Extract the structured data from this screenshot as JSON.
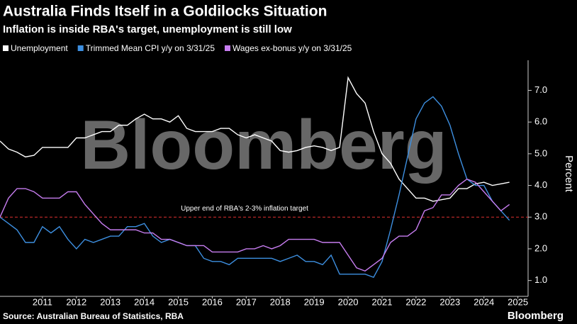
{
  "chart_data": {
    "type": "line",
    "title": "Australia Finds Itself in a Goldilocks Situation",
    "subtitle": "Inflation is inside RBA's target, unemployment is still low",
    "y_axis_label": "Percent",
    "source": "Source: Australian Bureau of Statistics, RBA",
    "watermark": "Bloomberg",
    "logo": "Bloomberg",
    "x": [
      2010.25,
      2010.5,
      2010.75,
      2011,
      2011.25,
      2011.5,
      2011.75,
      2012,
      2012.25,
      2012.5,
      2012.75,
      2013,
      2013.25,
      2013.5,
      2013.75,
      2014,
      2014.25,
      2014.5,
      2014.75,
      2015,
      2015.25,
      2015.5,
      2015.75,
      2016,
      2016.25,
      2016.5,
      2016.75,
      2017,
      2017.25,
      2017.5,
      2017.75,
      2018,
      2018.25,
      2018.5,
      2018.75,
      2019,
      2019.25,
      2019.5,
      2019.75,
      2020,
      2020.25,
      2020.5,
      2020.75,
      2021,
      2021.25,
      2021.5,
      2021.75,
      2022,
      2022.25,
      2022.5,
      2022.75,
      2023,
      2023.25,
      2023.5,
      2023.75,
      2024,
      2024.25,
      2024.5,
      2024.75,
      2025,
      2025.25
    ],
    "series": [
      {
        "name": "Unemployment",
        "color": "#ffffff",
        "values": [
          5.4,
          5.15,
          5.05,
          4.9,
          4.95,
          5.2,
          5.2,
          5.2,
          5.2,
          5.5,
          5.5,
          5.6,
          5.7,
          5.7,
          5.9,
          5.9,
          6.1,
          6.25,
          6.1,
          6.1,
          6.0,
          6.2,
          5.8,
          5.7,
          5.7,
          5.7,
          5.8,
          5.8,
          5.6,
          5.5,
          5.6,
          5.5,
          5.4,
          5.1,
          5.05,
          5.1,
          5.2,
          5.25,
          5.2,
          5.1,
          5.2,
          7.4,
          6.9,
          6.6,
          5.7,
          5.0,
          4.7,
          4.2,
          3.9,
          3.6,
          3.6,
          3.5,
          3.55,
          3.6,
          3.9,
          3.9,
          4.05,
          4.1,
          4.0,
          4.05,
          4.1
        ]
      },
      {
        "name": "Trimmed Mean CPI y/y on 3/31/25",
        "color": "#3d8fe0",
        "values": [
          3.0,
          2.8,
          2.6,
          2.2,
          2.2,
          2.7,
          2.5,
          2.7,
          2.3,
          2.0,
          2.3,
          2.2,
          2.3,
          2.4,
          2.4,
          2.7,
          2.7,
          2.8,
          2.4,
          2.2,
          2.3,
          2.2,
          2.1,
          2.1,
          1.7,
          1.6,
          1.6,
          1.5,
          1.7,
          1.7,
          1.7,
          1.7,
          1.7,
          1.6,
          1.7,
          1.8,
          1.6,
          1.6,
          1.5,
          1.8,
          1.2,
          1.2,
          1.2,
          1.2,
          1.1,
          1.6,
          2.6,
          3.7,
          4.9,
          6.1,
          6.6,
          6.8,
          6.5,
          5.9,
          5.0,
          4.2,
          4.0,
          4.0,
          3.5,
          3.2,
          2.9
        ]
      },
      {
        "name": "Wages ex-bonus y/y on 3/31/25",
        "color": "#c77df0",
        "values": [
          3.0,
          3.6,
          3.9,
          3.9,
          3.8,
          3.6,
          3.6,
          3.6,
          3.8,
          3.8,
          3.4,
          3.1,
          2.8,
          2.6,
          2.6,
          2.6,
          2.6,
          2.5,
          2.5,
          2.3,
          2.3,
          2.2,
          2.1,
          2.1,
          2.1,
          1.9,
          1.9,
          1.9,
          1.9,
          2.0,
          2.0,
          2.1,
          2.0,
          2.1,
          2.3,
          2.3,
          2.3,
          2.3,
          2.2,
          2.2,
          2.2,
          1.8,
          1.4,
          1.3,
          1.5,
          1.7,
          2.2,
          2.4,
          2.4,
          2.6,
          3.2,
          3.3,
          3.7,
          3.7,
          4.0,
          4.2,
          4.1,
          3.8,
          3.5,
          3.2,
          3.4
        ]
      }
    ],
    "reference_line": {
      "value": 3,
      "color": "#e03030",
      "label": "Upper end of RBA's 2-3% inflation target"
    },
    "xlim": [
      2010.25,
      2025.8
    ],
    "xticks": [
      {
        "value": 2011.5,
        "label": "2011"
      },
      {
        "value": 2012.5,
        "label": "2012"
      },
      {
        "value": 2013.5,
        "label": "2013"
      },
      {
        "value": 2014.5,
        "label": "2014"
      },
      {
        "value": 2015.5,
        "label": "2015"
      },
      {
        "value": 2016.5,
        "label": "2016"
      },
      {
        "value": 2017.5,
        "label": "2017"
      },
      {
        "value": 2018.5,
        "label": "2018"
      },
      {
        "value": 2019.5,
        "label": "2019"
      },
      {
        "value": 2020.5,
        "label": "2020"
      },
      {
        "value": 2021.5,
        "label": "2021"
      },
      {
        "value": 2022.5,
        "label": "2022"
      },
      {
        "value": 2023.5,
        "label": "2023"
      },
      {
        "value": 2024.5,
        "label": "2024"
      },
      {
        "value": 2025.5,
        "label": "2025"
      }
    ],
    "ylim": [
      0.5,
      7.95
    ],
    "yticks": [
      {
        "value": 1,
        "label": "1.0"
      },
      {
        "value": 2,
        "label": "2.0"
      },
      {
        "value": 3,
        "label": "3.0"
      },
      {
        "value": 4,
        "label": "4.0"
      },
      {
        "value": 5,
        "label": "5.0"
      },
      {
        "value": 6,
        "label": "6.0"
      },
      {
        "value": 7,
        "label": "7.0"
      }
    ],
    "grid": false
  }
}
